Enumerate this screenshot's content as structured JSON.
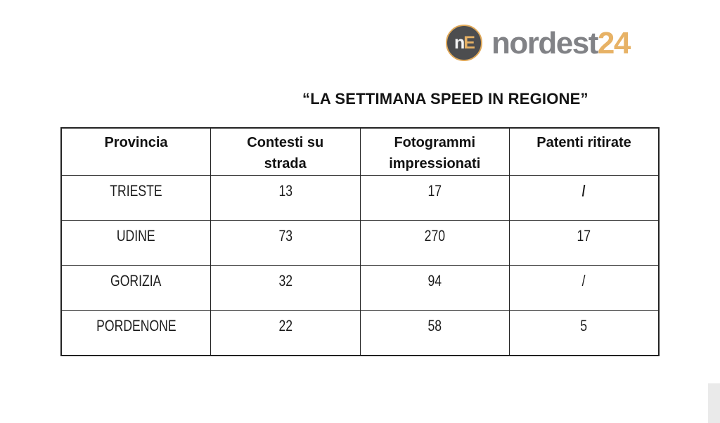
{
  "logo": {
    "icon_n": "n",
    "icon_e": "E",
    "name_main": "nordest",
    "name_accent": "24",
    "colors": {
      "icon_bg": "#4c4d4f",
      "icon_ring": "#dfa859",
      "name_main": "#818286",
      "accent": "#e7b266"
    }
  },
  "title": "“LA SETTIMANA SPEED IN REGIONE”",
  "table": {
    "headers": [
      "Provincia",
      "Contesti su\nstrada",
      "Fotogrammi\nimpressionati",
      "Patenti ritirate"
    ],
    "rows": [
      {
        "cells": [
          "TRIESTE",
          "13",
          "17",
          "/"
        ],
        "bold_cells": [
          3
        ]
      },
      {
        "cells": [
          "UDINE",
          "73",
          "270",
          "17"
        ],
        "bold_cells": []
      },
      {
        "cells": [
          "GORIZIA",
          "32",
          "94",
          "/"
        ],
        "bold_cells": []
      },
      {
        "cells": [
          "PORDENONE",
          "22",
          "58",
          "5"
        ],
        "bold_cells": []
      }
    ]
  },
  "chart_data": {
    "type": "table",
    "title": "“LA SETTIMANA SPEED IN REGIONE”",
    "columns": [
      "Provincia",
      "Contesti su strada",
      "Fotogrammi impressionati",
      "Patenti ritirate"
    ],
    "rows": [
      [
        "TRIESTE",
        "13",
        "17",
        "/"
      ],
      [
        "UDINE",
        "73",
        "270",
        "17"
      ],
      [
        "GORIZIA",
        "32",
        "94",
        "/"
      ],
      [
        "PORDENONE",
        "22",
        "58",
        "5"
      ]
    ]
  }
}
